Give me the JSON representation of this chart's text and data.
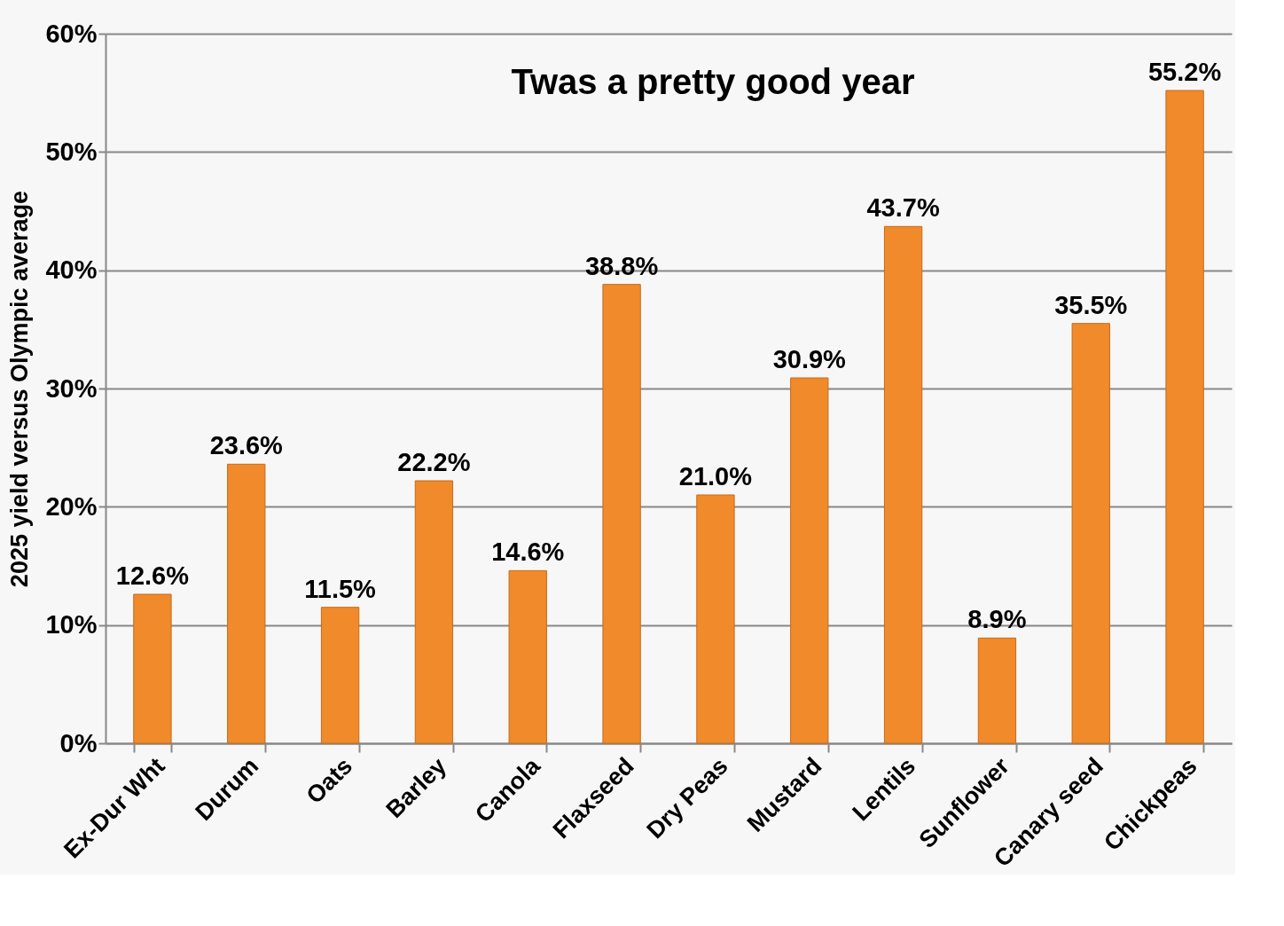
{
  "chart_data": {
    "type": "bar",
    "title": "Twas a pretty good year",
    "ylabel": "2025 yield versus Olympic average",
    "categories": [
      "Ex-Dur Wht",
      "Durum",
      "Oats",
      "Barley",
      "Canola",
      "Flaxseed",
      "Dry Peas",
      "Mustard",
      "Lentils",
      "Sunflower",
      "Canary seed",
      "Chickpeas"
    ],
    "values": [
      12.6,
      23.6,
      11.5,
      22.2,
      14.6,
      38.8,
      21.0,
      30.9,
      43.7,
      8.9,
      35.5,
      55.2
    ],
    "value_labels": [
      "12.6%",
      "23.6%",
      "11.5%",
      "22.2%",
      "14.6%",
      "38.8%",
      "21.0%",
      "30.9%",
      "43.7%",
      "8.9%",
      "35.5%",
      "55.2%"
    ],
    "color": "#f08a2a",
    "ylim": [
      0,
      60
    ],
    "yticks": [
      {
        "value": 0,
        "label": "0%"
      },
      {
        "value": 10,
        "label": "10%"
      },
      {
        "value": 20,
        "label": "20%"
      },
      {
        "value": 30,
        "label": "30%"
      },
      {
        "value": 40,
        "label": "40%"
      },
      {
        "value": 50,
        "label": "50%"
      },
      {
        "value": 60,
        "label": "60%"
      }
    ],
    "grid": "y"
  }
}
